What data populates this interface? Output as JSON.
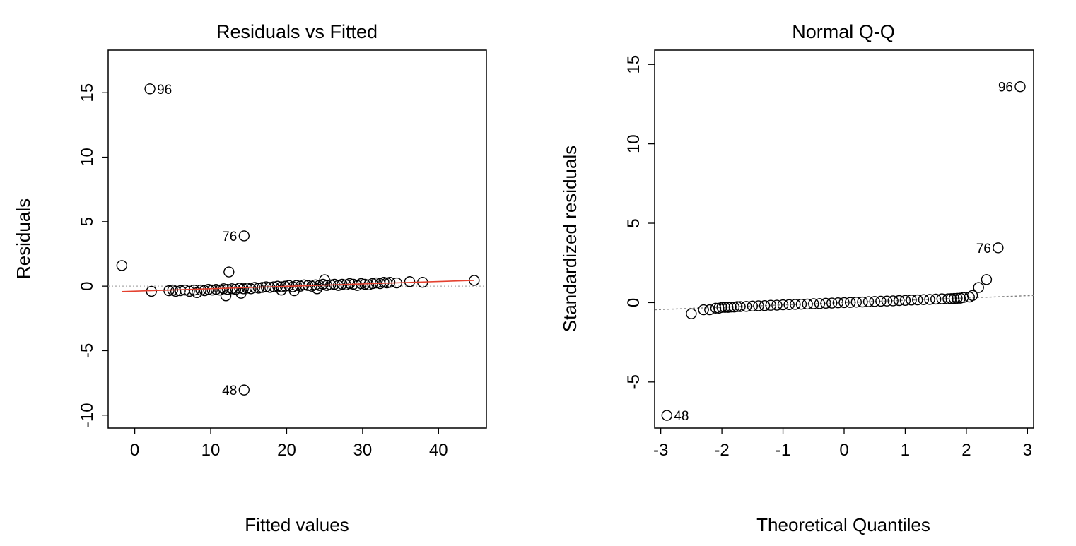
{
  "colors": {
    "point_stroke": "#000000",
    "smooth_line": "#e4412f",
    "reference_line": "#a9a9a9",
    "qq_line": "#808080"
  },
  "chart_data": [
    {
      "type": "scatter",
      "title": "Residuals vs Fitted",
      "xlabel": "Fitted values",
      "ylabel": "Residuals",
      "xlim": [
        -3.5,
        46.3
      ],
      "ylim": [
        -11,
        18.3
      ],
      "x_ticks": [
        0,
        10,
        20,
        30,
        40
      ],
      "x_tick_labels": [
        "0",
        "10",
        "20",
        "30",
        "40"
      ],
      "y_ticks": [
        -10,
        -5,
        0,
        5,
        10,
        15
      ],
      "y_tick_labels": [
        "-10",
        "-5",
        "0",
        "5",
        "10",
        "15"
      ],
      "grid": false,
      "reference_line": {
        "y": 0,
        "style": "dotted"
      },
      "smoother": {
        "x": [
          -1.7,
          44.7
        ],
        "y": [
          -0.42,
          0.45
        ]
      },
      "points": [
        [
          -1.7,
          1.6
        ],
        [
          2.2,
          -0.4
        ],
        [
          4.5,
          -0.35
        ],
        [
          5.0,
          -0.3
        ],
        [
          5.4,
          -0.4
        ],
        [
          6.0,
          -0.35
        ],
        [
          6.6,
          -0.3
        ],
        [
          7.2,
          -0.4
        ],
        [
          7.8,
          -0.3
        ],
        [
          8.2,
          -0.5
        ],
        [
          8.7,
          -0.3
        ],
        [
          9.2,
          -0.35
        ],
        [
          9.7,
          -0.25
        ],
        [
          10.2,
          -0.3
        ],
        [
          10.7,
          -0.25
        ],
        [
          11.2,
          -0.3
        ],
        [
          11.7,
          -0.2
        ],
        [
          12.2,
          -0.25
        ],
        [
          12.8,
          -0.2
        ],
        [
          13.3,
          -0.25
        ],
        [
          13.8,
          -0.15
        ],
        [
          14.3,
          -0.2
        ],
        [
          14.8,
          -0.15
        ],
        [
          15.3,
          -0.2
        ],
        [
          15.8,
          -0.1
        ],
        [
          16.3,
          -0.15
        ],
        [
          16.8,
          -0.1
        ],
        [
          17.3,
          -0.05
        ],
        [
          17.8,
          -0.1
        ],
        [
          18.3,
          -0.05
        ],
        [
          18.8,
          0.0
        ],
        [
          19.3,
          -0.05
        ],
        [
          19.8,
          0.0
        ],
        [
          20.3,
          0.05
        ],
        [
          20.8,
          -0.05
        ],
        [
          21.3,
          0.05
        ],
        [
          21.8,
          0.0
        ],
        [
          22.3,
          0.1
        ],
        [
          22.8,
          0.05
        ],
        [
          23.3,
          0.0
        ],
        [
          23.8,
          0.1
        ],
        [
          24.3,
          0.05
        ],
        [
          24.8,
          0.15
        ],
        [
          25.3,
          0.05
        ],
        [
          25.8,
          0.1
        ],
        [
          26.3,
          0.15
        ],
        [
          26.8,
          0.05
        ],
        [
          27.3,
          0.15
        ],
        [
          27.8,
          0.1
        ],
        [
          28.3,
          0.2
        ],
        [
          28.8,
          0.15
        ],
        [
          29.3,
          0.05
        ],
        [
          29.8,
          0.2
        ],
        [
          30.3,
          0.15
        ],
        [
          30.8,
          0.1
        ],
        [
          31.3,
          0.2
        ],
        [
          31.8,
          0.25
        ],
        [
          32.3,
          0.2
        ],
        [
          32.8,
          0.3
        ],
        [
          33.2,
          0.25
        ],
        [
          33.6,
          0.3
        ],
        [
          34.5,
          0.25
        ],
        [
          36.2,
          0.35
        ],
        [
          37.9,
          0.3
        ],
        [
          44.7,
          0.45
        ],
        [
          12.0,
          -0.75
        ],
        [
          14.0,
          -0.55
        ],
        [
          19.3,
          -0.3
        ],
        [
          21.0,
          -0.35
        ],
        [
          24.0,
          -0.2
        ],
        [
          12.4,
          1.1
        ],
        [
          25.0,
          0.5
        ],
        [
          2.0,
          15.3
        ],
        [
          14.4,
          3.9
        ],
        [
          14.4,
          -8.05
        ]
      ],
      "labeled_points": [
        {
          "label": "96",
          "x": 2.0,
          "y": 15.3,
          "side": "right"
        },
        {
          "label": "76",
          "x": 14.4,
          "y": 3.9,
          "side": "left"
        },
        {
          "label": "48",
          "x": 14.4,
          "y": -8.05,
          "side": "left"
        }
      ]
    },
    {
      "type": "scatter",
      "title": "Normal Q-Q",
      "xlabel": "Theoretical Quantiles",
      "ylabel": "Standardized residuals",
      "xlim": [
        -3.1,
        3.1
      ],
      "ylim": [
        -7.9,
        15.9
      ],
      "x_ticks": [
        -3,
        -2,
        -1,
        0,
        1,
        2,
        3
      ],
      "x_tick_labels": [
        "-3",
        "-2",
        "-1",
        "0",
        "1",
        "2",
        "3"
      ],
      "y_ticks": [
        -5,
        0,
        5,
        10,
        15
      ],
      "y_tick_labels": [
        "-5",
        "0",
        "5",
        "10",
        "15"
      ],
      "grid": false,
      "qq_line": {
        "x": [
          -3.1,
          3.1
        ],
        "y": [
          -0.45,
          0.45
        ],
        "style": "dotted"
      },
      "points": [
        [
          -2.5,
          -0.7
        ],
        [
          -2.3,
          -0.45
        ],
        [
          -2.2,
          -0.45
        ],
        [
          -2.1,
          -0.35
        ],
        [
          -2.05,
          -0.35
        ],
        [
          -2.0,
          -0.3
        ],
        [
          -1.95,
          -0.3
        ],
        [
          -1.9,
          -0.3
        ],
        [
          -1.85,
          -0.28
        ],
        [
          -1.8,
          -0.28
        ],
        [
          -1.75,
          -0.25
        ],
        [
          -1.7,
          -0.25
        ],
        [
          -1.6,
          -0.24
        ],
        [
          -1.5,
          -0.22
        ],
        [
          -1.4,
          -0.2
        ],
        [
          -1.3,
          -0.19
        ],
        [
          -1.2,
          -0.17
        ],
        [
          -1.1,
          -0.16
        ],
        [
          -1.0,
          -0.14
        ],
        [
          -0.9,
          -0.13
        ],
        [
          -0.8,
          -0.11
        ],
        [
          -0.7,
          -0.1
        ],
        [
          -0.6,
          -0.09
        ],
        [
          -0.5,
          -0.07
        ],
        [
          -0.4,
          -0.06
        ],
        [
          -0.3,
          -0.04
        ],
        [
          -0.2,
          -0.03
        ],
        [
          -0.1,
          -0.01
        ],
        [
          0.0,
          0.0
        ],
        [
          0.1,
          0.01
        ],
        [
          0.2,
          0.03
        ],
        [
          0.3,
          0.04
        ],
        [
          0.4,
          0.06
        ],
        [
          0.5,
          0.07
        ],
        [
          0.6,
          0.09
        ],
        [
          0.7,
          0.1
        ],
        [
          0.8,
          0.11
        ],
        [
          0.9,
          0.13
        ],
        [
          1.0,
          0.14
        ],
        [
          1.1,
          0.16
        ],
        [
          1.2,
          0.17
        ],
        [
          1.3,
          0.19
        ],
        [
          1.4,
          0.2
        ],
        [
          1.5,
          0.22
        ],
        [
          1.6,
          0.24
        ],
        [
          1.7,
          0.24
        ],
        [
          1.75,
          0.25
        ],
        [
          1.8,
          0.26
        ],
        [
          1.85,
          0.27
        ],
        [
          1.9,
          0.28
        ],
        [
          1.95,
          0.32
        ],
        [
          2.05,
          0.35
        ],
        [
          2.1,
          0.45
        ],
        [
          2.2,
          0.95
        ],
        [
          2.33,
          1.45
        ],
        [
          2.52,
          3.45
        ],
        [
          2.88,
          13.6
        ],
        [
          -2.9,
          -7.1
        ]
      ],
      "labeled_points": [
        {
          "label": "96",
          "x": 2.88,
          "y": 13.6,
          "side": "left"
        },
        {
          "label": "76",
          "x": 2.52,
          "y": 3.45,
          "side": "left"
        },
        {
          "label": "48",
          "x": -2.9,
          "y": -7.1,
          "side": "right"
        }
      ]
    }
  ]
}
